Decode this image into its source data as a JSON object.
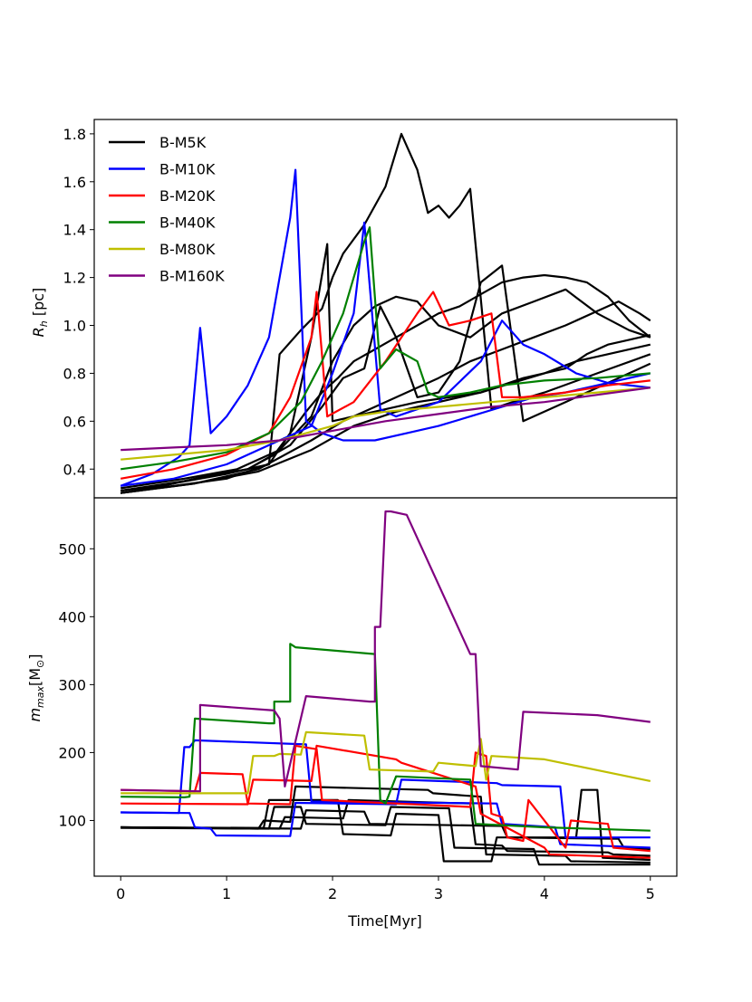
{
  "chart_data": [
    {
      "type": "line",
      "panel": "top",
      "ylabel": "R_h [pc]",
      "ylabel_main": "R",
      "ylabel_sub": "h",
      "ylabel_unit": " [pc]",
      "xlim": [
        -0.25,
        5.25
      ],
      "ylim": [
        0.28,
        1.86
      ],
      "yticks": [
        0.4,
        0.6,
        0.8,
        1.0,
        1.2,
        1.4,
        1.6,
        1.8
      ],
      "ytick_labels": [
        "0.4",
        "0.6",
        "0.8",
        "1.0",
        "1.2",
        "1.4",
        "1.6",
        "1.8"
      ],
      "legend": [
        {
          "label": "B-M5K",
          "color": "#000000"
        },
        {
          "label": "B-M10K",
          "color": "#0000ff"
        },
        {
          "label": "B-M20K",
          "color": "#ff0000"
        },
        {
          "label": "B-M40K",
          "color": "#008000"
        },
        {
          "label": "B-M80K",
          "color": "#bfbf00"
        },
        {
          "label": "B-M160K",
          "color": "#800080"
        }
      ],
      "series": [
        {
          "name": "B-M5K",
          "color": "#000000",
          "x": [
            0,
            0.4,
            0.8,
            1.2,
            1.45,
            1.6,
            1.75,
            1.9,
            2.05,
            2.2,
            2.4,
            2.6,
            2.8,
            3.0,
            3.2,
            3.4,
            3.6,
            3.8,
            4.0,
            4.2,
            4.4,
            4.6,
            4.8,
            5.0
          ],
          "y": [
            0.3,
            0.33,
            0.37,
            0.4,
            0.46,
            0.55,
            0.64,
            0.72,
            0.78,
            0.85,
            0.9,
            0.95,
            1.0,
            1.05,
            1.08,
            1.13,
            1.18,
            1.2,
            1.21,
            1.2,
            1.18,
            1.12,
            1.02,
            0.95
          ]
        },
        {
          "name": "B-M5K",
          "color": "#000000",
          "x": [
            0,
            0.5,
            1.0,
            1.4,
            1.5,
            1.7,
            1.9,
            2.0,
            2.1,
            2.3,
            2.5,
            2.65,
            2.8,
            2.9,
            3.0,
            3.1,
            3.2,
            3.3,
            3.5,
            3.7,
            4.0,
            4.5,
            5.0
          ],
          "y": [
            0.31,
            0.34,
            0.38,
            0.42,
            0.88,
            0.98,
            1.07,
            1.2,
            1.3,
            1.42,
            1.58,
            1.8,
            1.65,
            1.47,
            1.5,
            1.45,
            1.5,
            1.57,
            0.65,
            0.68,
            0.72,
            0.8,
            0.88
          ]
        },
        {
          "name": "B-M5K",
          "color": "#000000",
          "x": [
            0,
            0.5,
            1.0,
            1.4,
            1.6,
            1.8,
            1.95,
            2.0,
            2.2,
            2.5,
            2.8,
            3.1,
            3.4,
            3.7,
            4.0,
            4.3,
            4.6,
            5.0
          ],
          "y": [
            0.3,
            0.33,
            0.36,
            0.42,
            0.55,
            0.95,
            1.34,
            0.6,
            0.62,
            0.65,
            0.68,
            0.7,
            0.72,
            0.76,
            0.8,
            0.85,
            0.88,
            0.92
          ]
        },
        {
          "name": "B-M5K",
          "color": "#000000",
          "x": [
            0,
            0.6,
            1.1,
            1.5,
            1.8,
            2.0,
            2.2,
            2.4,
            2.6,
            2.8,
            3.0,
            3.3,
            3.6,
            3.9,
            4.2,
            4.5,
            4.8,
            5.0
          ],
          "y": [
            0.32,
            0.36,
            0.4,
            0.48,
            0.62,
            0.85,
            1.0,
            1.08,
            1.12,
            1.1,
            1.0,
            0.95,
            1.05,
            1.1,
            1.15,
            1.05,
            0.98,
            0.95
          ]
        },
        {
          "name": "B-M5K",
          "color": "#000000",
          "x": [
            0,
            0.6,
            1.2,
            1.6,
            1.9,
            2.1,
            2.3,
            2.45,
            2.6,
            2.8,
            3.0,
            3.2,
            3.4,
            3.6,
            3.8,
            4.0,
            4.2,
            4.4,
            4.6,
            4.8,
            5.0
          ],
          "y": [
            0.31,
            0.35,
            0.4,
            0.5,
            0.66,
            0.78,
            0.82,
            1.08,
            0.95,
            0.7,
            0.72,
            0.85,
            1.18,
            1.25,
            0.6,
            0.64,
            0.68,
            0.72,
            0.76,
            0.8,
            0.84
          ]
        },
        {
          "name": "B-M5K",
          "color": "#000000",
          "x": [
            0,
            0.7,
            1.3,
            1.8,
            2.1,
            2.4,
            2.7,
            3.0,
            3.3,
            3.6,
            3.9,
            4.2,
            4.5,
            4.7,
            4.9,
            5.0
          ],
          "y": [
            0.3,
            0.34,
            0.4,
            0.52,
            0.6,
            0.66,
            0.72,
            0.78,
            0.85,
            0.9,
            0.95,
            1.0,
            1.06,
            1.1,
            1.05,
            1.02
          ]
        },
        {
          "name": "B-M5K",
          "color": "#000000",
          "x": [
            0,
            0.7,
            1.3,
            1.8,
            2.2,
            2.6,
            3.0,
            3.4,
            3.8,
            4.2,
            4.4,
            4.6,
            4.8,
            5.0
          ],
          "y": [
            0.3,
            0.34,
            0.39,
            0.48,
            0.58,
            0.64,
            0.68,
            0.72,
            0.78,
            0.82,
            0.88,
            0.92,
            0.94,
            0.96
          ]
        },
        {
          "name": "B-M10K",
          "color": "#0000ff",
          "x": [
            0,
            0.3,
            0.55,
            0.65,
            0.75,
            0.85,
            1.0,
            1.2,
            1.4,
            1.6,
            1.65,
            1.75,
            1.9,
            2.1,
            2.4,
            2.7,
            3.0,
            3.3,
            3.6,
            3.9,
            4.2,
            4.5,
            4.8,
            5.0
          ],
          "y": [
            0.33,
            0.38,
            0.45,
            0.5,
            0.99,
            0.55,
            0.62,
            0.75,
            0.95,
            1.45,
            1.65,
            0.6,
            0.55,
            0.52,
            0.52,
            0.55,
            0.58,
            0.62,
            0.66,
            0.7,
            0.72,
            0.75,
            0.78,
            0.8
          ]
        },
        {
          "name": "B-M10K",
          "color": "#0000ff",
          "x": [
            0,
            0.5,
            1.0,
            1.4,
            1.8,
            2.0,
            2.2,
            2.3,
            2.45,
            2.6,
            3.0,
            3.4,
            3.6,
            3.8,
            4.0,
            4.3,
            4.6,
            5.0
          ],
          "y": [
            0.33,
            0.36,
            0.42,
            0.5,
            0.58,
            0.8,
            1.05,
            1.43,
            0.65,
            0.62,
            0.68,
            0.85,
            1.02,
            0.92,
            0.88,
            0.8,
            0.76,
            0.74
          ]
        },
        {
          "name": "B-M20K",
          "color": "#ff0000",
          "x": [
            0,
            0.5,
            1.0,
            1.4,
            1.6,
            1.8,
            1.85,
            1.95,
            2.2,
            2.5,
            2.8,
            2.95,
            3.1,
            3.3,
            3.5,
            3.6,
            3.8,
            4.2,
            4.6,
            5.0
          ],
          "y": [
            0.36,
            0.4,
            0.46,
            0.55,
            0.7,
            0.95,
            1.14,
            0.62,
            0.68,
            0.85,
            1.05,
            1.14,
            1.0,
            1.02,
            1.05,
            0.7,
            0.7,
            0.72,
            0.75,
            0.77
          ]
        },
        {
          "name": "B-M40K",
          "color": "#008000",
          "x": [
            0,
            0.5,
            1.0,
            1.4,
            1.7,
            1.9,
            2.1,
            2.3,
            2.35,
            2.45,
            2.6,
            2.8,
            2.9,
            3.0,
            3.3,
            3.6,
            4.0,
            4.5,
            5.0
          ],
          "y": [
            0.4,
            0.43,
            0.47,
            0.55,
            0.68,
            0.85,
            1.05,
            1.35,
            1.41,
            0.82,
            0.9,
            0.85,
            0.72,
            0.7,
            0.72,
            0.75,
            0.77,
            0.78,
            0.8
          ]
        },
        {
          "name": "B-M80K",
          "color": "#bfbf00",
          "x": [
            0,
            0.5,
            1.0,
            1.5,
            2.0,
            2.2,
            2.5,
            3.0,
            3.5,
            4.0,
            4.5,
            5.0
          ],
          "y": [
            0.44,
            0.46,
            0.48,
            0.52,
            0.58,
            0.62,
            0.64,
            0.66,
            0.68,
            0.7,
            0.72,
            0.74
          ]
        },
        {
          "name": "B-M160K",
          "color": "#800080",
          "x": [
            0,
            0.5,
            1.0,
            1.5,
            2.0,
            2.5,
            3.0,
            3.5,
            4.0,
            4.5,
            5.0
          ],
          "y": [
            0.48,
            0.49,
            0.5,
            0.52,
            0.56,
            0.6,
            0.63,
            0.66,
            0.68,
            0.71,
            0.74
          ]
        }
      ]
    },
    {
      "type": "line",
      "panel": "bottom",
      "xlabel": "Time[Myr]",
      "ylabel": "m_max [M_sun]",
      "ylabel_main": "m",
      "ylabel_sub": "max",
      "ylabel_unit_open": "[M",
      "ylabel_unit_sub": "⊙",
      "ylabel_unit_close": "]",
      "xlim": [
        -0.25,
        5.25
      ],
      "ylim": [
        18,
        575
      ],
      "xticks": [
        0,
        1,
        2,
        3,
        4,
        5
      ],
      "xtick_labels": [
        "0",
        "1",
        "2",
        "3",
        "4",
        "5"
      ],
      "yticks": [
        100,
        200,
        300,
        400,
        500
      ],
      "ytick_labels": [
        "100",
        "200",
        "300",
        "400",
        "500"
      ],
      "series": [
        {
          "name": "B-M5K",
          "color": "#000000",
          "x": [
            0,
            1.3,
            1.35,
            1.6,
            1.65,
            2.9,
            2.95,
            3.4,
            3.45,
            4.2,
            4.25,
            5.0
          ],
          "y": [
            90,
            88,
            100,
            98,
            150,
            145,
            140,
            135,
            50,
            48,
            40,
            38
          ]
        },
        {
          "name": "B-M5K",
          "color": "#000000",
          "x": [
            0,
            1.35,
            1.4,
            2.05,
            2.1,
            2.55,
            2.6,
            3.0,
            3.05,
            3.5,
            3.55,
            4.3,
            4.35,
            4.5,
            4.55,
            5.0
          ],
          "y": [
            90,
            89,
            130,
            130,
            80,
            78,
            110,
            108,
            40,
            40,
            75,
            75,
            145,
            145,
            45,
            42
          ]
        },
        {
          "name": "B-M5K",
          "color": "#000000",
          "x": [
            0,
            1.4,
            1.45,
            1.7,
            1.75,
            2.5,
            2.55,
            3.1,
            3.15,
            3.9,
            3.95,
            5.0
          ],
          "y": [
            89,
            88,
            120,
            120,
            95,
            93,
            120,
            118,
            60,
            58,
            35,
            35
          ]
        },
        {
          "name": "B-M5K",
          "color": "#000000",
          "x": [
            0,
            1.5,
            1.55,
            2.1,
            2.15,
            3.3,
            3.35,
            3.6,
            3.65,
            4.6,
            4.65,
            5.0
          ],
          "y": [
            90,
            88,
            105,
            103,
            130,
            125,
            65,
            63,
            55,
            53,
            50,
            48
          ]
        },
        {
          "name": "B-M5K",
          "color": "#000000",
          "x": [
            0,
            1.7,
            1.75,
            2.3,
            2.35,
            3.6,
            3.65,
            4.7,
            4.75,
            5.0
          ],
          "y": [
            90,
            88,
            115,
            113,
            95,
            92,
            75,
            73,
            60,
            58
          ]
        },
        {
          "name": "B-M10K",
          "color": "#0000ff",
          "x": [
            0,
            0.55,
            0.6,
            0.65,
            0.7,
            1.75,
            1.8,
            3.55,
            3.6,
            4.1,
            4.15,
            5.0
          ],
          "y": [
            112,
            111,
            208,
            208,
            218,
            212,
            128,
            125,
            95,
            90,
            65,
            60
          ]
        },
        {
          "name": "B-M10K",
          "color": "#0000ff",
          "x": [
            0,
            0.65,
            0.7,
            0.85,
            0.9,
            1.6,
            1.65,
            2.6,
            2.65,
            3.55,
            3.6,
            4.15,
            4.2,
            5.0
          ],
          "y": [
            112,
            111,
            90,
            88,
            78,
            77,
            126,
            124,
            160,
            155,
            152,
            150,
            75,
            75
          ]
        },
        {
          "name": "B-M20K",
          "color": "#ff0000",
          "x": [
            0,
            0.7,
            0.75,
            1.15,
            1.2,
            1.6,
            1.65,
            1.85,
            1.9,
            3.3,
            3.35,
            3.45,
            3.5,
            3.6,
            3.65,
            3.8,
            3.85,
            4.2,
            4.25,
            4.6,
            4.65,
            5.0
          ],
          "y": [
            145,
            143,
            170,
            168,
            125,
            124,
            210,
            205,
            130,
            120,
            200,
            195,
            110,
            105,
            75,
            70,
            130,
            60,
            100,
            95,
            60,
            55
          ]
        },
        {
          "name": "B-M20K",
          "color": "#ff0000",
          "x": [
            0,
            1.2,
            1.25,
            1.8,
            1.85,
            2.6,
            2.65,
            3.35,
            3.4,
            4.0,
            4.05,
            5.0
          ],
          "y": [
            125,
            124,
            160,
            158,
            210,
            190,
            185,
            150,
            110,
            60,
            50,
            45
          ]
        },
        {
          "name": "B-M40K",
          "color": "#008000",
          "x": [
            0,
            0.6,
            0.65,
            0.7,
            1.4,
            1.45,
            1.45,
            1.6,
            1.6,
            1.65,
            2.4,
            2.45,
            2.5,
            2.6,
            3.3,
            3.35,
            4.0,
            5.0
          ],
          "y": [
            135,
            134,
            135,
            250,
            243,
            243,
            275,
            275,
            360,
            355,
            345,
            130,
            125,
            165,
            160,
            95,
            90,
            85
          ]
        },
        {
          "name": "B-M80K",
          "color": "#bfbf00",
          "x": [
            0,
            1.2,
            1.25,
            1.45,
            1.5,
            1.7,
            1.75,
            2.3,
            2.35,
            2.95,
            3.0,
            3.35,
            3.4,
            3.45,
            3.5,
            4.0,
            5.0
          ],
          "y": [
            140,
            140,
            195,
            195,
            198,
            197,
            230,
            225,
            175,
            172,
            185,
            180,
            220,
            160,
            195,
            190,
            158
          ]
        },
        {
          "name": "B-M160K",
          "color": "#800080",
          "x": [
            0,
            0.75,
            0.75,
            1.45,
            1.5,
            1.55,
            1.75,
            2.35,
            2.4,
            2.4,
            2.45,
            2.5,
            2.55,
            2.7,
            3.3,
            3.35,
            3.4,
            3.75,
            3.8,
            4.5,
            5.0
          ],
          "y": [
            145,
            143,
            270,
            262,
            250,
            150,
            283,
            275,
            275,
            385,
            385,
            555,
            555,
            550,
            345,
            345,
            180,
            175,
            260,
            255,
            245
          ]
        }
      ]
    }
  ]
}
